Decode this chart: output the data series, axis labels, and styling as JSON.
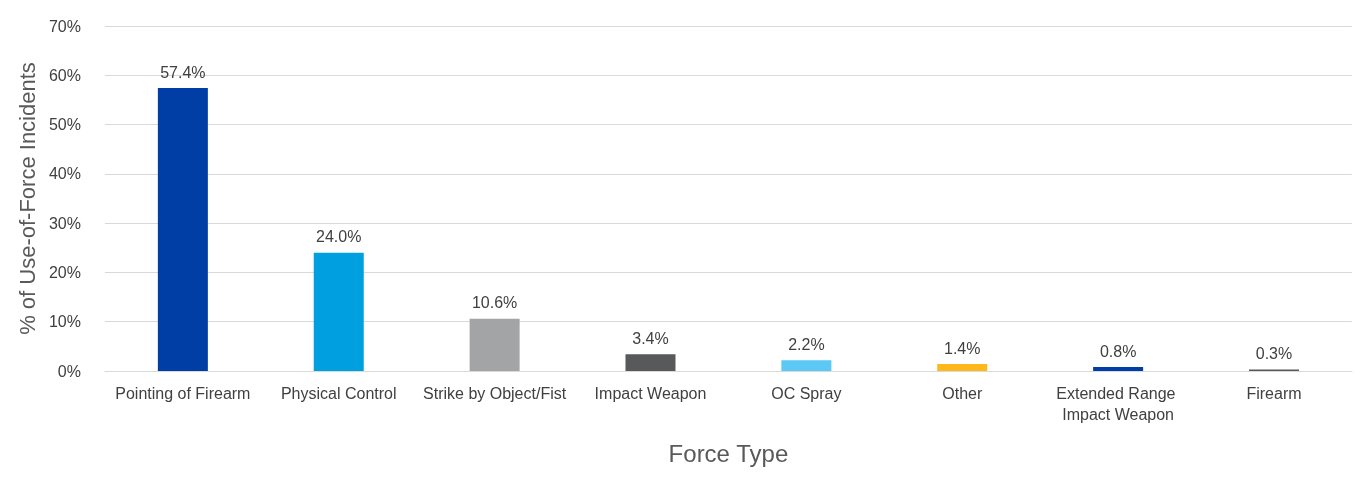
{
  "chart_data": {
    "type": "bar",
    "xlabel": "Force Type",
    "ylabel": "% of Use-of-Force Incidents",
    "categories": [
      "Pointing of Firearm",
      "Physical Control",
      "Strike by Object/Fist",
      "Impact Weapon",
      "OC Spray",
      "Other",
      "Extended Range Impact Weapon",
      "Firearm"
    ],
    "values": [
      57.4,
      24.0,
      10.6,
      3.4,
      2.2,
      1.4,
      0.8,
      0.3
    ],
    "value_labels": [
      "57.4%",
      "24.0%",
      "10.6%",
      "3.4%",
      "2.2%",
      "1.4%",
      "0.8%",
      "0.3%"
    ],
    "colors": [
      "#003da5",
      "#009fdf",
      "#a2a4a6",
      "#58595b",
      "#5bc8f5",
      "#ffb81c",
      "#003da5",
      "#58595b"
    ],
    "ylim": [
      0,
      70
    ],
    "yticks": [
      {
        "value": 0,
        "label": "0%"
      },
      {
        "value": 10,
        "label": "10%"
      },
      {
        "value": 20,
        "label": "20%"
      },
      {
        "value": 30,
        "label": "30%"
      },
      {
        "value": 40,
        "label": "40%"
      },
      {
        "value": 50,
        "label": "50%"
      },
      {
        "value": 60,
        "label": "60%"
      },
      {
        "value": 70,
        "label": "70%"
      }
    ],
    "grid": "y"
  }
}
